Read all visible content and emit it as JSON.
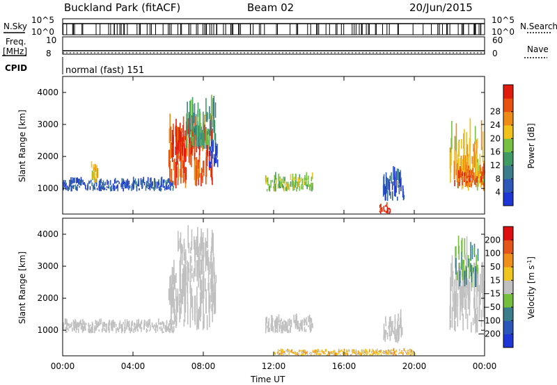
{
  "header": {
    "station": "Buckland Park (fitACF)",
    "beam": "Beam 02",
    "date": "20/Jun/2015"
  },
  "top_panels": {
    "nsky_label": "N.Sky",
    "nsky_ticks": [
      "10^5",
      "10^0"
    ],
    "nsearch_label": "N.Search",
    "nsearch_ticks": [
      "10^5",
      "10^0"
    ],
    "freq_label_1": "Freq.",
    "freq_label_2": "[MHz]",
    "freq_ticks": [
      "10",
      "8"
    ],
    "nave_label": "Nave",
    "nave_ticks": [
      "60",
      "0"
    ],
    "cpid_label": "CPID",
    "cpid_text": "normal (fast) 151"
  },
  "colors": {
    "ground_scatter": "#c0c0c0",
    "power_scale": [
      "#1f36d6",
      "#2d57b8",
      "#3c7d8c",
      "#3f9a63",
      "#76c042",
      "#f0c21a",
      "#ee8b17",
      "#e8510f",
      "#e01d0c"
    ],
    "velocity_scale": [
      "#1f36d6",
      "#2a56b9",
      "#3a7d8d",
      "#74c03e",
      "#c3c3c3",
      "#f1c520",
      "#ee8f1b",
      "#e5541a",
      "#e00f0f"
    ]
  },
  "chart_data": [
    {
      "type": "heatmap",
      "panel": "power",
      "ylabel": "Slant Range [km]",
      "xlabel": "Time UT",
      "x_ticks": [
        "00:00",
        "04:00",
        "08:00",
        "12:00",
        "16:00",
        "20:00",
        "00:00"
      ],
      "y_ticks": [
        1000,
        2000,
        3000,
        4000
      ],
      "ylim": [
        200,
        4500
      ],
      "colorbar": {
        "label": "Power [dB]",
        "ticks": [
          4,
          8,
          12,
          16,
          20,
          24,
          28
        ]
      },
      "regions": [
        {
          "x0": 0.0,
          "x1": 6.3,
          "y0": 900,
          "y1": 1200,
          "level": 1
        },
        {
          "x0": 1.6,
          "x1": 2.0,
          "y0": 1150,
          "y1": 1700,
          "level": 5
        },
        {
          "x0": 6.0,
          "x1": 8.5,
          "y0": 1000,
          "y1": 2500,
          "level": 7
        },
        {
          "x0": 6.2,
          "x1": 7.5,
          "y0": 1800,
          "y1": 2800,
          "level": 8
        },
        {
          "x0": 7.0,
          "x1": 8.7,
          "y0": 2200,
          "y1": 3300,
          "level": 3
        },
        {
          "x0": 8.3,
          "x1": 8.8,
          "y0": 1600,
          "y1": 2200,
          "level": 0
        },
        {
          "x0": 11.5,
          "x1": 14.2,
          "y0": 900,
          "y1": 1300,
          "level": 4
        },
        {
          "x0": 18.2,
          "x1": 19.4,
          "y0": 600,
          "y1": 1300,
          "level": 1
        },
        {
          "x0": 18.0,
          "x1": 18.6,
          "y0": 200,
          "y1": 450,
          "level": 8
        },
        {
          "x0": 22.0,
          "x1": 24.0,
          "y0": 900,
          "y1": 2400,
          "level": 5
        },
        {
          "x0": 22.2,
          "x1": 24.0,
          "y0": 1000,
          "y1": 1500,
          "level": 7
        }
      ]
    },
    {
      "type": "heatmap",
      "panel": "velocity",
      "ylabel": "Slant Range [km]",
      "xlabel": "Time UT",
      "x_ticks": [
        "00:00",
        "04:00",
        "08:00",
        "12:00",
        "16:00",
        "20:00",
        "00:00"
      ],
      "y_ticks": [
        1000,
        2000,
        3000,
        4000
      ],
      "ylim": [
        200,
        4500
      ],
      "colorbar": {
        "label": "Velocity [m s",
        "label_sup": "-1",
        "label_end": "]",
        "ticks": [
          "200",
          "100",
          "50",
          "15",
          "−15",
          "−50",
          "−100",
          "−200"
        ]
      },
      "regions": [
        {
          "x0": 0.0,
          "x1": 6.3,
          "y0": 900,
          "y1": 1200,
          "level": 4
        },
        {
          "x0": 6.0,
          "x1": 8.7,
          "y0": 1000,
          "y1": 2500,
          "level": 4
        },
        {
          "x0": 6.5,
          "x1": 8.6,
          "y0": 2500,
          "y1": 3600,
          "level": 4
        },
        {
          "x0": 11.5,
          "x1": 14.2,
          "y0": 900,
          "y1": 1300,
          "level": 4
        },
        {
          "x0": 18.2,
          "x1": 19.4,
          "y0": 600,
          "y1": 1300,
          "level": 4
        },
        {
          "x0": 12.0,
          "x1": 20.0,
          "y0": 200,
          "y1": 350,
          "level": 5
        },
        {
          "x0": 22.0,
          "x1": 24.0,
          "y0": 900,
          "y1": 2400,
          "level": 4
        },
        {
          "x0": 22.3,
          "x1": 23.6,
          "y0": 2300,
          "y1": 3400,
          "level": 3
        }
      ]
    }
  ]
}
